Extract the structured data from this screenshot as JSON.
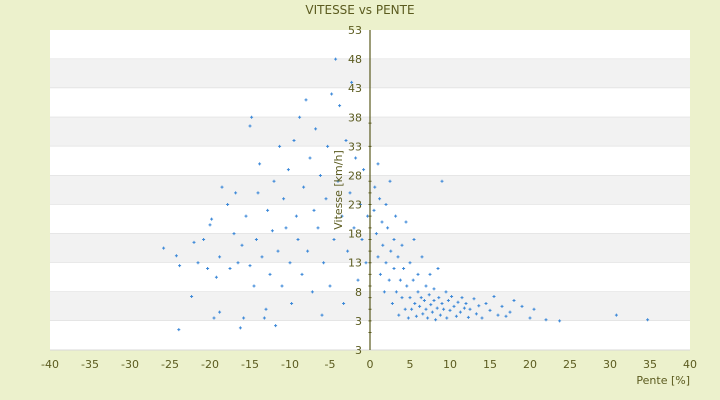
{
  "chart_data": {
    "type": "scatter",
    "title": "VITESSE vs PENTE",
    "xlabel": "Pente [%]",
    "ylabel": "Vitesse [km/h]",
    "xlim": [
      -40,
      40
    ],
    "ylim": [
      -2,
      53
    ],
    "x_ticks": [
      "-40",
      "-35",
      "-30",
      "-25",
      "-20",
      "-15",
      "-10",
      "-5",
      "0",
      "5",
      "10",
      "15",
      "20",
      "25",
      "30",
      "35",
      "40"
    ],
    "y_ticks": [
      "53",
      "48",
      "43",
      "38",
      "33",
      "28",
      "23",
      "18",
      "13",
      "8",
      "3",
      "3"
    ],
    "grid": "horizontal bands",
    "colors": {
      "points": "#3a87d8",
      "zero_axis": "#5b5b1f",
      "band": "#f2f2f2",
      "background": "#ecf1cc"
    },
    "points": [
      [
        -25.8,
        15.5
      ],
      [
        -24.2,
        14.2
      ],
      [
        -23.8,
        12.5
      ],
      [
        -23.9,
        1.5
      ],
      [
        -22.3,
        7.2
      ],
      [
        -22,
        16.5
      ],
      [
        -21.5,
        13
      ],
      [
        -20.8,
        17
      ],
      [
        -20.3,
        12
      ],
      [
        -20,
        19.5
      ],
      [
        -19.8,
        20.5
      ],
      [
        -19.5,
        3.5
      ],
      [
        -19.2,
        10.5
      ],
      [
        -18.8,
        14
      ],
      [
        -18.5,
        26
      ],
      [
        -18.8,
        4.5
      ],
      [
        -17.8,
        23
      ],
      [
        -17.5,
        12
      ],
      [
        -17,
        18
      ],
      [
        -16.8,
        25
      ],
      [
        -16.5,
        13
      ],
      [
        -16.2,
        1.8
      ],
      [
        -16,
        16
      ],
      [
        -15.8,
        3.5
      ],
      [
        -15.5,
        21
      ],
      [
        -15,
        12.5
      ],
      [
        -15,
        36.5
      ],
      [
        -14.8,
        38
      ],
      [
        -14.5,
        9
      ],
      [
        -14.2,
        17
      ],
      [
        -14,
        25
      ],
      [
        -13.8,
        30
      ],
      [
        -13.5,
        14
      ],
      [
        -13.2,
        3.5
      ],
      [
        -13,
        5
      ],
      [
        -12.8,
        22
      ],
      [
        -12.5,
        11
      ],
      [
        -12.2,
        18.5
      ],
      [
        -12,
        27
      ],
      [
        -11.8,
        2.2
      ],
      [
        -11.5,
        15
      ],
      [
        -11.3,
        33
      ],
      [
        -11,
        9
      ],
      [
        -10.8,
        24
      ],
      [
        -10.5,
        19
      ],
      [
        -10.2,
        29
      ],
      [
        -10,
        13
      ],
      [
        -9.8,
        6
      ],
      [
        -9.5,
        34
      ],
      [
        -9.2,
        21
      ],
      [
        -9,
        17
      ],
      [
        -8.8,
        38
      ],
      [
        -8.5,
        11
      ],
      [
        -8.3,
        26
      ],
      [
        -8,
        41
      ],
      [
        -7.8,
        15
      ],
      [
        -7.5,
        31
      ],
      [
        -7.2,
        8
      ],
      [
        -7,
        22
      ],
      [
        -6.8,
        36
      ],
      [
        -6.5,
        19
      ],
      [
        -6.2,
        28
      ],
      [
        -6,
        4
      ],
      [
        -5.8,
        13
      ],
      [
        -5.5,
        24
      ],
      [
        -5.3,
        33
      ],
      [
        -5,
        9
      ],
      [
        -4.8,
        42
      ],
      [
        -4.5,
        17
      ],
      [
        -4.3,
        48
      ],
      [
        -4,
        27
      ],
      [
        -3.8,
        40
      ],
      [
        -3.5,
        21
      ],
      [
        -3.3,
        6
      ],
      [
        -3,
        34
      ],
      [
        -2.8,
        15
      ],
      [
        -2.5,
        25
      ],
      [
        -2.3,
        44
      ],
      [
        -2,
        19
      ],
      [
        -1.8,
        31
      ],
      [
        -1.5,
        10
      ],
      [
        -1.2,
        23
      ],
      [
        -1,
        17
      ],
      [
        -0.8,
        29
      ],
      [
        -0.5,
        13
      ],
      [
        -0.3,
        21
      ],
      [
        0,
        1
      ],
      [
        0,
        3
      ],
      [
        0,
        5
      ],
      [
        0,
        7
      ],
      [
        0,
        9
      ],
      [
        0,
        11
      ],
      [
        0,
        13
      ],
      [
        0,
        15
      ],
      [
        0,
        17
      ],
      [
        0,
        19
      ],
      [
        0,
        21
      ],
      [
        0,
        23
      ],
      [
        0,
        25
      ],
      [
        0,
        27
      ],
      [
        0,
        33
      ],
      [
        0,
        37
      ],
      [
        0.5,
        22
      ],
      [
        0.6,
        26
      ],
      [
        0.8,
        18
      ],
      [
        1,
        14
      ],
      [
        1,
        30
      ],
      [
        1.2,
        24
      ],
      [
        1.3,
        11
      ],
      [
        1.5,
        20
      ],
      [
        1.6,
        16
      ],
      [
        1.8,
        8
      ],
      [
        2,
        23
      ],
      [
        2,
        13
      ],
      [
        2.2,
        19
      ],
      [
        2.4,
        10
      ],
      [
        2.5,
        27
      ],
      [
        2.6,
        15
      ],
      [
        2.8,
        6
      ],
      [
        3,
        17
      ],
      [
        3,
        12
      ],
      [
        3.2,
        21
      ],
      [
        3.3,
        8
      ],
      [
        3.5,
        14
      ],
      [
        3.6,
        4
      ],
      [
        3.8,
        10
      ],
      [
        4,
        16
      ],
      [
        4,
        7
      ],
      [
        4.2,
        12
      ],
      [
        4.4,
        5
      ],
      [
        4.5,
        20
      ],
      [
        4.6,
        9
      ],
      [
        4.8,
        3.5
      ],
      [
        5,
        13
      ],
      [
        5,
        7
      ],
      [
        5.2,
        5
      ],
      [
        5.4,
        10
      ],
      [
        5.5,
        17
      ],
      [
        5.6,
        6
      ],
      [
        5.8,
        3.8
      ],
      [
        6,
        8
      ],
      [
        6,
        11
      ],
      [
        6.2,
        5.5
      ],
      [
        6.4,
        7
      ],
      [
        6.5,
        14
      ],
      [
        6.6,
        4.2
      ],
      [
        6.8,
        6.5
      ],
      [
        7,
        9
      ],
      [
        7,
        5
      ],
      [
        7.2,
        3.5
      ],
      [
        7.4,
        7.5
      ],
      [
        7.5,
        11
      ],
      [
        7.6,
        5.8
      ],
      [
        7.8,
        4.5
      ],
      [
        8,
        6.5
      ],
      [
        8,
        8.5
      ],
      [
        8.2,
        3.2
      ],
      [
        8.4,
        5.2
      ],
      [
        8.5,
        12
      ],
      [
        8.6,
        7
      ],
      [
        8.8,
        4
      ],
      [
        9,
        27
      ],
      [
        9,
        6
      ],
      [
        9.2,
        5
      ],
      [
        9.5,
        8
      ],
      [
        9.6,
        3.5
      ],
      [
        9.8,
        6.5
      ],
      [
        10,
        4.8
      ],
      [
        10.2,
        7.2
      ],
      [
        10.5,
        5.5
      ],
      [
        10.8,
        3.8
      ],
      [
        11,
        6.2
      ],
      [
        11.3,
        4.5
      ],
      [
        11.5,
        7
      ],
      [
        11.8,
        5.2
      ],
      [
        12,
        6
      ],
      [
        12.3,
        3.6
      ],
      [
        12.5,
        5
      ],
      [
        13,
        6.8
      ],
      [
        13.3,
        4.2
      ],
      [
        13.6,
        5.6
      ],
      [
        14,
        3.5
      ],
      [
        14.5,
        6
      ],
      [
        15,
        4.8
      ],
      [
        15.5,
        7.2
      ],
      [
        16,
        4
      ],
      [
        16.5,
        5.5
      ],
      [
        17,
        3.8
      ],
      [
        17.5,
        4.5
      ],
      [
        18,
        6.5
      ],
      [
        19,
        5.5
      ],
      [
        20,
        3.5
      ],
      [
        20.5,
        5
      ],
      [
        22,
        3.2
      ],
      [
        23.7,
        3
      ],
      [
        30.8,
        4
      ],
      [
        34.7,
        3.2
      ]
    ]
  }
}
